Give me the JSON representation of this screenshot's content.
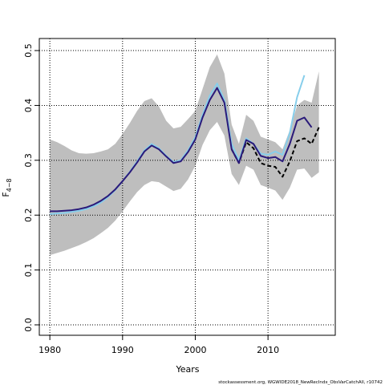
{
  "chart_data": {
    "type": "line",
    "xlabel": "Years",
    "ylabel": "F",
    "ylabel_subscript": "4−8",
    "footnote": "stockassessment.org, WGWIDE2018_NewRecIndx_ObsVarCatchAll, r10742",
    "x": [
      1980,
      1981,
      1982,
      1983,
      1984,
      1985,
      1986,
      1987,
      1988,
      1989,
      1990,
      1991,
      1992,
      1993,
      1994,
      1995,
      1996,
      1997,
      1998,
      1999,
      2000,
      2001,
      2002,
      2003,
      2004,
      2005,
      2006,
      2007,
      2008,
      2009,
      2010,
      2011,
      2012,
      2013,
      2014,
      2015,
      2016,
      2017
    ],
    "band": {
      "color": "#bebebe",
      "upper": [
        0.338,
        0.333,
        0.326,
        0.318,
        0.313,
        0.312,
        0.313,
        0.316,
        0.32,
        0.33,
        0.348,
        0.368,
        0.39,
        0.408,
        0.413,
        0.398,
        0.372,
        0.358,
        0.361,
        0.375,
        0.39,
        0.43,
        0.47,
        0.493,
        0.458,
        0.365,
        0.33,
        0.383,
        0.372,
        0.343,
        0.338,
        0.333,
        0.32,
        0.355,
        0.4,
        0.41,
        0.405,
        0.462
      ],
      "lower": [
        0.127,
        0.131,
        0.135,
        0.14,
        0.145,
        0.151,
        0.158,
        0.167,
        0.177,
        0.19,
        0.207,
        0.225,
        0.242,
        0.255,
        0.262,
        0.26,
        0.252,
        0.244,
        0.248,
        0.265,
        0.29,
        0.328,
        0.355,
        0.37,
        0.345,
        0.275,
        0.255,
        0.29,
        0.283,
        0.255,
        0.25,
        0.245,
        0.228,
        0.25,
        0.283,
        0.285,
        0.268,
        0.278
      ]
    },
    "series": [
      {
        "color": "#87ceeb",
        "values": [
          0.202,
          0.203,
          0.204,
          0.206,
          0.208,
          0.211,
          0.216,
          0.223,
          0.233,
          0.246,
          0.262,
          0.279,
          0.298,
          0.318,
          0.33,
          0.322,
          0.308,
          0.297,
          0.3,
          0.318,
          0.342,
          0.383,
          0.418,
          0.44,
          0.41,
          0.33,
          0.3,
          0.34,
          0.33,
          0.312,
          0.31,
          0.316,
          0.31,
          0.35,
          0.415,
          0.455,
          null,
          null
        ]
      },
      {
        "color": "#000000",
        "dashed": true,
        "values": [
          null,
          null,
          null,
          null,
          null,
          null,
          null,
          null,
          null,
          null,
          null,
          null,
          null,
          null,
          null,
          null,
          null,
          null,
          null,
          null,
          null,
          null,
          null,
          null,
          null,
          0.32,
          0.295,
          0.333,
          0.322,
          0.295,
          0.29,
          0.288,
          0.27,
          0.298,
          0.335,
          0.34,
          0.33,
          0.36
        ]
      },
      {
        "color": "#2a1a7a",
        "values": [
          0.207,
          0.207,
          0.208,
          0.209,
          0.211,
          0.214,
          0.219,
          0.226,
          0.235,
          0.247,
          0.262,
          0.278,
          0.296,
          0.316,
          0.327,
          0.32,
          0.307,
          0.295,
          0.298,
          0.315,
          0.338,
          0.378,
          0.41,
          0.432,
          0.405,
          0.32,
          0.295,
          0.337,
          0.33,
          0.308,
          0.304,
          0.306,
          0.298,
          0.33,
          0.372,
          0.378,
          0.36,
          null
        ]
      }
    ],
    "xlim": [
      1978.55,
      2019.25
    ],
    "ylim": [
      -0.019,
      0.522
    ],
    "xticks": [
      1980,
      1990,
      2000,
      2010
    ],
    "yticks": [
      {
        "value": 0,
        "label": "0.0"
      },
      0.1,
      0.2,
      0.3,
      0.4,
      0.5
    ],
    "grid": true
  }
}
